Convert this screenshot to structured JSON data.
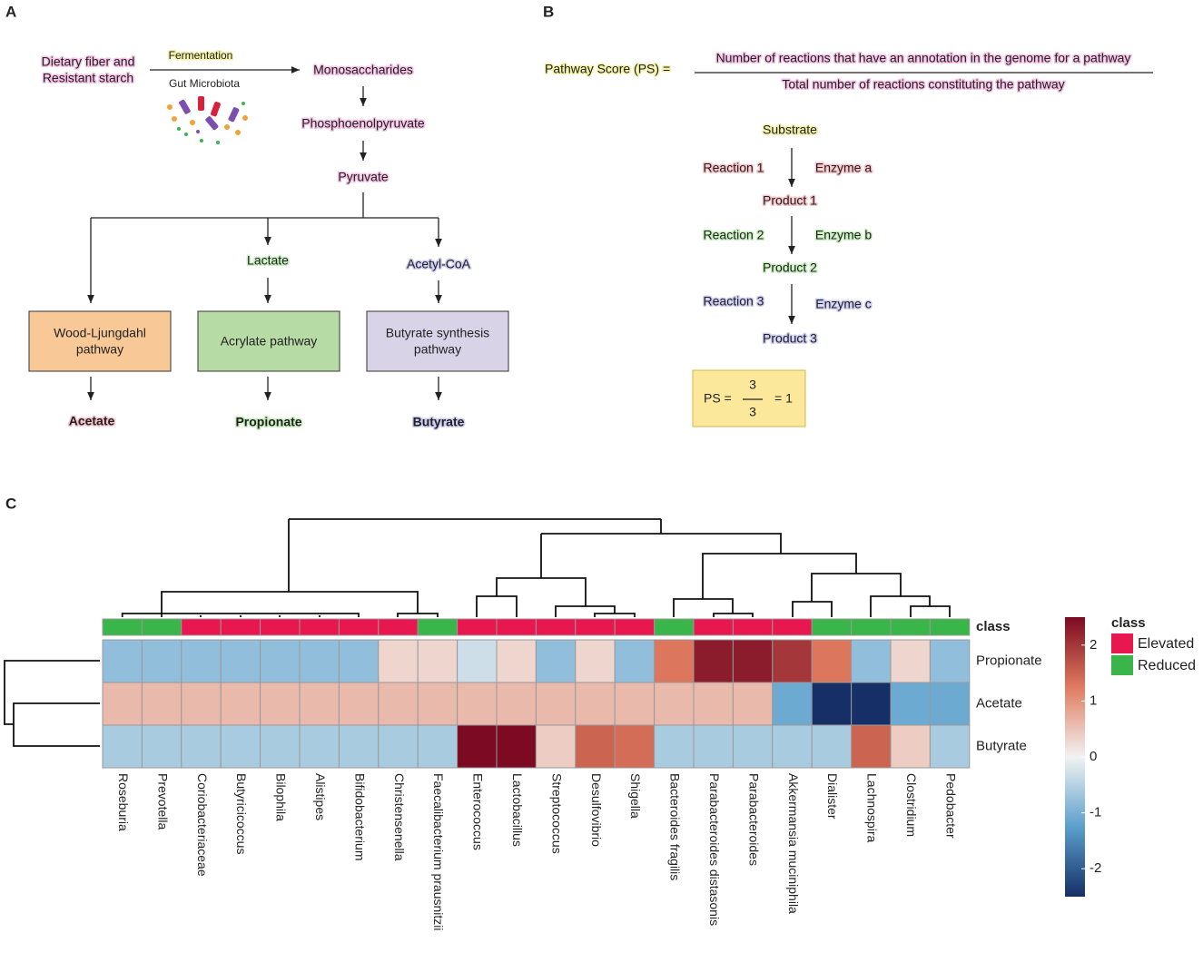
{
  "panel_a": {
    "label": "A",
    "source": [
      "Dietary fiber and",
      "Resistant starch"
    ],
    "arrow_top": "Fermentation",
    "arrow_bottom": "Gut Microbiota",
    "chain": [
      "Monosaccharides",
      "Phosphoenolpyruvate",
      "Pyruvate"
    ],
    "intermediates": [
      "Lactate",
      "Acetyl-CoA"
    ],
    "pathways": [
      [
        "Wood-Ljungdahl",
        "pathway"
      ],
      [
        "Acrylate pathway"
      ],
      [
        "Butyrate synthesis",
        "pathway"
      ]
    ],
    "products": [
      "Acetate",
      "Propionate",
      "Butyrate"
    ]
  },
  "panel_b": {
    "label": "B",
    "lhs": "Pathway Score (PS) =",
    "numerator": "Number of reactions that have an annotation in the genome for a pathway",
    "denominator": "Total number of reactions constituting the pathway",
    "substrate": "Substrate",
    "steps": [
      {
        "reaction": "Reaction 1",
        "enzyme": "Enzyme a",
        "product": "Product 1"
      },
      {
        "reaction": "Reaction 2",
        "enzyme": "Enzyme b",
        "product": "Product 2"
      },
      {
        "reaction": "Reaction 3",
        "enzyme": "Enzyme c",
        "product": "Product 3"
      }
    ],
    "example": {
      "lhs": "PS =",
      "numerator": 3,
      "denominator": 3,
      "result": "= 1"
    }
  },
  "panel_c": {
    "label": "C"
  },
  "chart_data": {
    "type": "heatmap",
    "rows": [
      "Propionate",
      "Acetate",
      "Butyrate"
    ],
    "columns": [
      "Roseburia",
      "Prevotella",
      "Coriobacteriaceae",
      "Butyricicoccus",
      "Bilophila",
      "Alistipes",
      "Bifidobacterium",
      "Christensenella",
      "Faecalibacterium prausnitzii",
      "Enterococcus",
      "Lactobacillus",
      "Streptococcus",
      "Desulfovibrio",
      "Shigella",
      "Bacteroides fragilis",
      "Parabacteroides distasonis",
      "Parabacteroides",
      "Akkermansia muciniphila",
      "Dialister",
      "Lachnospira",
      "Clostridium",
      "Pedobacter"
    ],
    "values": [
      [
        -0.8,
        -0.8,
        -0.8,
        -0.8,
        -0.8,
        -0.8,
        -0.8,
        0.3,
        0.3,
        -0.3,
        0.3,
        -0.8,
        0.3,
        -0.8,
        1.3,
        2.3,
        2.3,
        2.0,
        1.3,
        -0.8,
        0.3,
        -0.8
      ],
      [
        0.6,
        0.6,
        0.6,
        0.6,
        0.6,
        0.6,
        0.6,
        0.6,
        0.6,
        0.6,
        0.6,
        0.6,
        0.6,
        0.6,
        0.6,
        0.6,
        0.6,
        -1.1,
        -2.5,
        -2.5,
        -1.1,
        -1.1
      ],
      [
        -0.6,
        -0.6,
        -0.6,
        -0.6,
        -0.6,
        -0.6,
        -0.6,
        -0.6,
        -0.6,
        2.5,
        2.5,
        0.4,
        1.5,
        1.4,
        -0.6,
        -0.6,
        -0.6,
        -0.6,
        -0.6,
        1.5,
        0.4,
        -0.6
      ]
    ],
    "annotation": {
      "title": "class",
      "values": [
        "Reduced",
        "Reduced",
        "Elevated",
        "Elevated",
        "Elevated",
        "Elevated",
        "Elevated",
        "Elevated",
        "Reduced",
        "Elevated",
        "Elevated",
        "Elevated",
        "Elevated",
        "Elevated",
        "Reduced",
        "Elevated",
        "Elevated",
        "Elevated",
        "Reduced",
        "Reduced",
        "Reduced",
        "Reduced"
      ],
      "legend": [
        {
          "name": "Elevated",
          "color": "#e8174f"
        },
        {
          "name": "Reduced",
          "color": "#3ab54a"
        }
      ]
    },
    "zlim": [
      -2.5,
      2.5
    ],
    "zticks": [
      -2,
      -1,
      0,
      1,
      2
    ],
    "colorscale": [
      "#162f66",
      "#5aa0cd",
      "#f2f2f2",
      "#e07b5e",
      "#7b0a22"
    ]
  }
}
